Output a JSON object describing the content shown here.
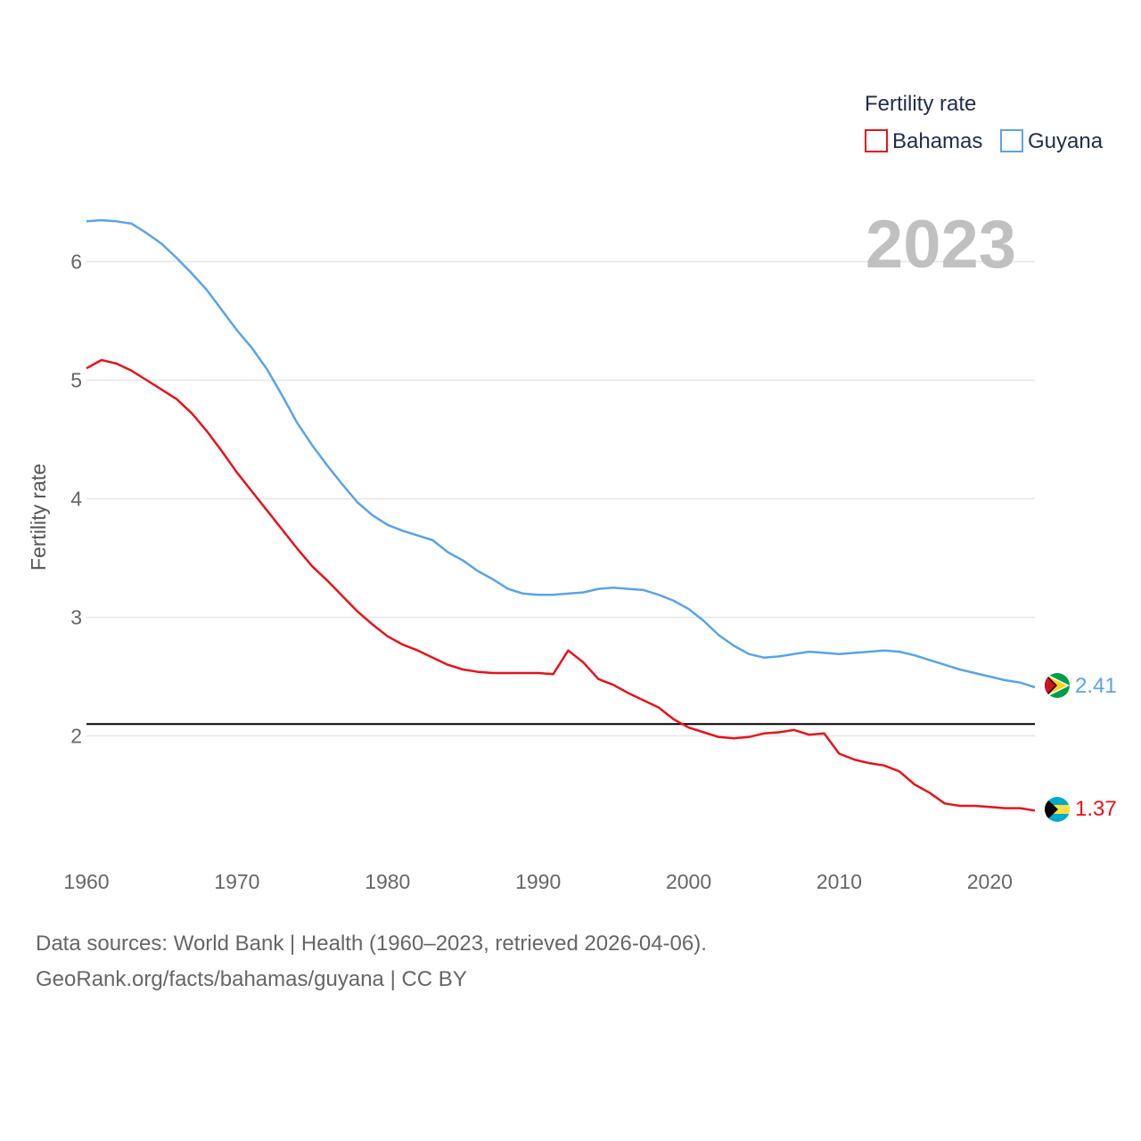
{
  "chart_data": {
    "type": "line",
    "title": "Fertility rate",
    "ylabel": "Fertility rate",
    "xlabel": "",
    "year_watermark": "2023",
    "xlim": [
      1960,
      2023
    ],
    "ylim": [
      1.0,
      6.7
    ],
    "x_ticks": [
      1960,
      1970,
      1980,
      1990,
      2000,
      2010,
      2020
    ],
    "y_ticks": [
      2,
      3,
      4,
      5,
      6
    ],
    "grid": true,
    "legend_position": "top-right",
    "reference_line": {
      "value": 2.1,
      "color": "#000000"
    },
    "x": [
      1960,
      1961,
      1962,
      1963,
      1964,
      1965,
      1966,
      1967,
      1968,
      1969,
      1970,
      1971,
      1972,
      1973,
      1974,
      1975,
      1976,
      1977,
      1978,
      1979,
      1980,
      1981,
      1982,
      1983,
      1984,
      1985,
      1986,
      1987,
      1988,
      1989,
      1990,
      1991,
      1992,
      1993,
      1994,
      1995,
      1996,
      1997,
      1998,
      1999,
      2000,
      2001,
      2002,
      2003,
      2004,
      2005,
      2006,
      2007,
      2008,
      2009,
      2010,
      2011,
      2012,
      2013,
      2014,
      2015,
      2016,
      2017,
      2018,
      2019,
      2020,
      2021,
      2022,
      2023
    ],
    "series": [
      {
        "name": "Bahamas",
        "color": "#e8121b",
        "end_label": "1.37",
        "values": [
          5.1,
          5.17,
          5.14,
          5.08,
          5.0,
          4.92,
          4.84,
          4.72,
          4.57,
          4.4,
          4.22,
          4.06,
          3.9,
          3.74,
          3.58,
          3.43,
          3.31,
          3.18,
          3.05,
          2.94,
          2.84,
          2.77,
          2.72,
          2.66,
          2.6,
          2.56,
          2.54,
          2.53,
          2.53,
          2.53,
          2.53,
          2.52,
          2.72,
          2.62,
          2.48,
          2.43,
          2.36,
          2.3,
          2.24,
          2.14,
          2.07,
          2.03,
          1.99,
          1.98,
          1.99,
          2.02,
          2.03,
          2.05,
          2.01,
          2.02,
          1.85,
          1.8,
          1.77,
          1.75,
          1.7,
          1.59,
          1.52,
          1.43,
          1.41,
          1.41,
          1.4,
          1.39,
          1.39,
          1.37
        ]
      },
      {
        "name": "Guyana",
        "color": "#5aa3e8",
        "end_label": "2.41",
        "values": [
          6.34,
          6.35,
          6.34,
          6.32,
          6.24,
          6.15,
          6.03,
          5.9,
          5.76,
          5.59,
          5.42,
          5.27,
          5.09,
          4.87,
          4.64,
          4.45,
          4.28,
          4.12,
          3.97,
          3.86,
          3.78,
          3.73,
          3.69,
          3.65,
          3.55,
          3.48,
          3.39,
          3.32,
          3.24,
          3.2,
          3.19,
          3.19,
          3.2,
          3.21,
          3.24,
          3.25,
          3.24,
          3.23,
          3.19,
          3.14,
          3.07,
          2.97,
          2.85,
          2.76,
          2.69,
          2.66,
          2.67,
          2.69,
          2.71,
          2.7,
          2.69,
          2.7,
          2.71,
          2.72,
          2.71,
          2.68,
          2.64,
          2.6,
          2.56,
          2.53,
          2.5,
          2.47,
          2.45,
          2.41
        ]
      }
    ]
  },
  "footer": {
    "source_line": "Data sources: World Bank | Health (1960–2023, retrieved 2026-04-06).",
    "url_line": "GeoRank.org/facts/bahamas/guyana | CC BY"
  }
}
